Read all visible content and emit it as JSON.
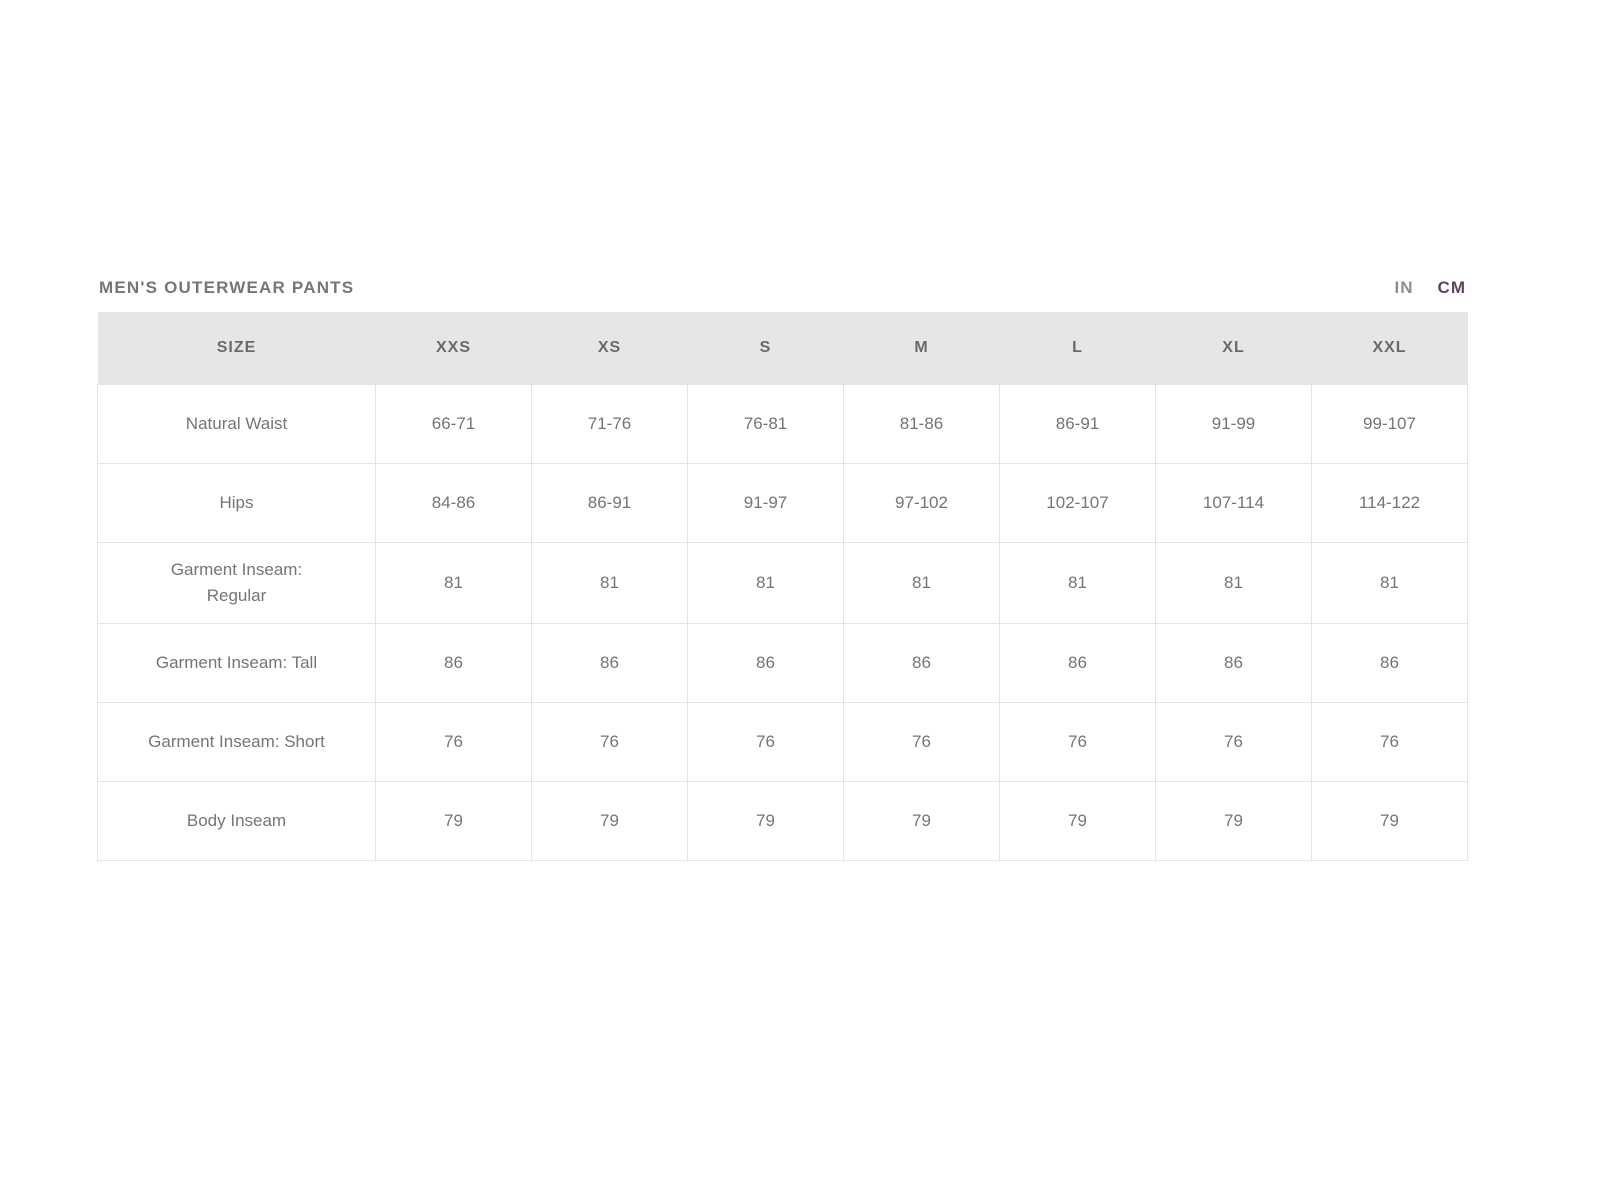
{
  "page": {
    "title": "MEN'S OUTERWEAR PANTS",
    "unit_toggle": {
      "options": [
        {
          "label": "IN",
          "selected": false
        },
        {
          "label": "CM",
          "selected": true
        }
      ]
    }
  },
  "colors": {
    "title_text": "#767676",
    "header_bg": "#e6e6e6",
    "header_text": "#6a6a6a",
    "cell_text": "#757575",
    "border": "#e5e5e5",
    "unit_inactive": "#8e8e8e",
    "unit_active": "#5e4560"
  },
  "table": {
    "columns": [
      "SIZE",
      "XXS",
      "XS",
      "S",
      "M",
      "L",
      "XL",
      "XXL"
    ],
    "rows": [
      {
        "label": "Natural Waist",
        "values": [
          "66-71",
          "71-76",
          "76-81",
          "81-86",
          "86-91",
          "91-99",
          "99-107"
        ]
      },
      {
        "label": "Hips",
        "values": [
          "84-86",
          "86-91",
          "91-97",
          "97-102",
          "102-107",
          "107-114",
          "114-122"
        ]
      },
      {
        "label": "Garment Inseam:\nRegular",
        "values": [
          "81",
          "81",
          "81",
          "81",
          "81",
          "81",
          "81"
        ]
      },
      {
        "label": "Garment Inseam: Tall",
        "values": [
          "86",
          "86",
          "86",
          "86",
          "86",
          "86",
          "86"
        ]
      },
      {
        "label": "Garment Inseam: Short",
        "values": [
          "76",
          "76",
          "76",
          "76",
          "76",
          "76",
          "76"
        ]
      },
      {
        "label": "Body Inseam",
        "values": [
          "79",
          "79",
          "79",
          "79",
          "79",
          "79",
          "79"
        ]
      }
    ]
  }
}
